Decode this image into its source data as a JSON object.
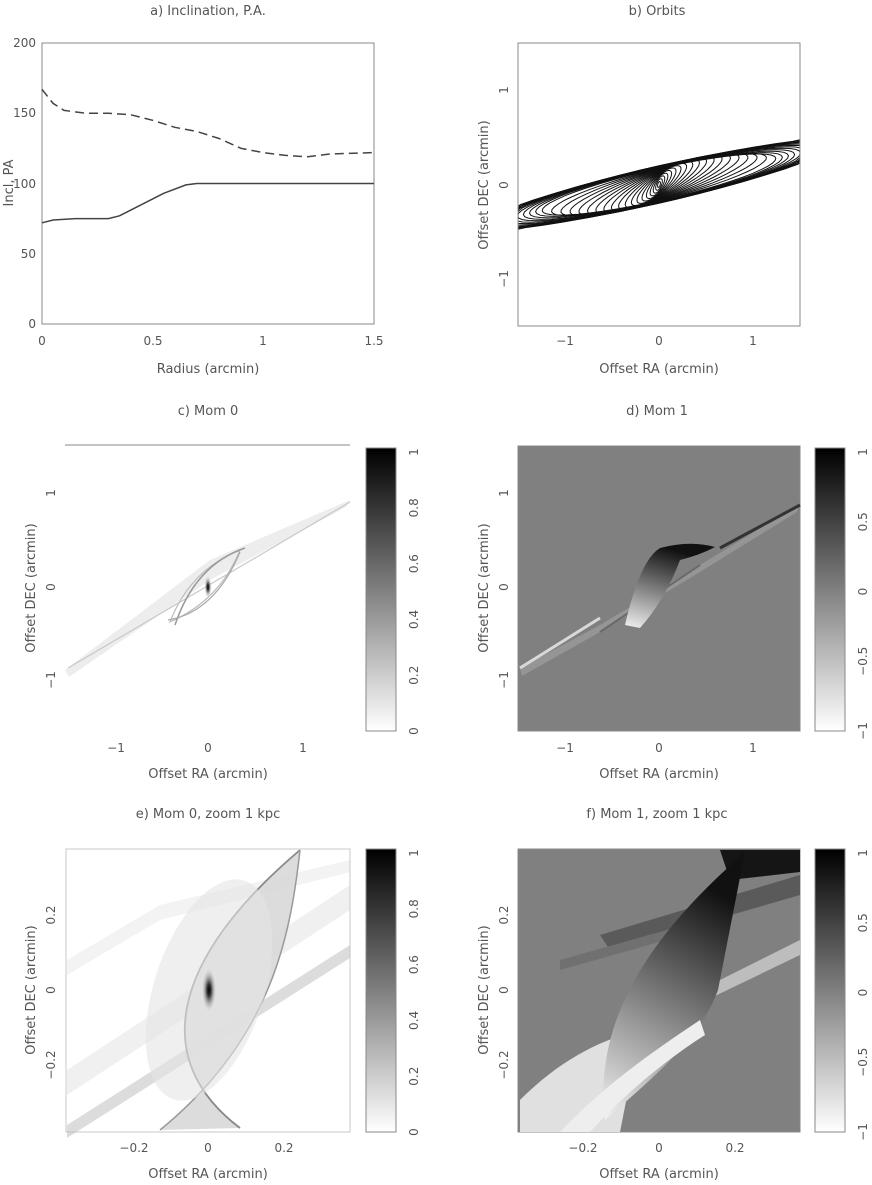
{
  "chart_data": [
    {
      "panel": "a",
      "type": "line",
      "title": "a) Inclination, P.A.",
      "xlabel": "Radius (arcmin)",
      "ylabel": "Incl, PA",
      "xlim": [
        0,
        1.5
      ],
      "ylim": [
        0,
        200
      ],
      "xticks": [
        "0",
        "0.5",
        "1",
        "1.5"
      ],
      "yticks": [
        "0",
        "50",
        "100",
        "150",
        "200"
      ],
      "series": [
        {
          "style": "solid",
          "color": "#444444",
          "x": [
            0,
            0.05,
            0.15,
            0.3,
            0.35,
            0.45,
            0.55,
            0.65,
            0.7,
            0.8,
            1.0,
            1.2,
            1.5
          ],
          "y": [
            72,
            74,
            75,
            75,
            77,
            85,
            93,
            99,
            100,
            100,
            100,
            100,
            100
          ]
        },
        {
          "style": "dashed",
          "color": "#444444",
          "x": [
            0,
            0.05,
            0.1,
            0.2,
            0.3,
            0.4,
            0.5,
            0.6,
            0.7,
            0.8,
            0.9,
            1.0,
            1.1,
            1.2,
            1.3,
            1.5
          ],
          "y": [
            167,
            157,
            152,
            150,
            150,
            149,
            145,
            140,
            137,
            132,
            125,
            122,
            120,
            119,
            121,
            122
          ]
        }
      ]
    },
    {
      "panel": "b",
      "type": "line",
      "title": "b) Orbits",
      "xlabel": "Offset RA (arcmin)",
      "ylabel": "Offset DEC (arcmin)",
      "xlim": [
        -1.5,
        1.5
      ],
      "ylim": [
        -1.5,
        1.5
      ],
      "xticks": [
        "−1",
        "0",
        "1"
      ],
      "yticks": [
        "−1",
        "0",
        "1"
      ],
      "orbits": {
        "count": 30,
        "r_min": 0.05,
        "r_max": 1.5,
        "color": "#111111"
      }
    },
    {
      "panel": "c",
      "type": "heatmap",
      "title": "c) Mom 0",
      "xlabel": "Offset RA (arcmin)",
      "ylabel": "Offset DEC (arcmin)",
      "xlim": [
        -1.5,
        1.5
      ],
      "ylim": [
        -1.5,
        1.5
      ],
      "xticks": [
        "−1",
        "0",
        "1"
      ],
      "yticks": [
        "−1",
        "0",
        "1"
      ],
      "colorbar": {
        "range": [
          0,
          1
        ],
        "labels": [
          "0",
          "0.2",
          "0.4",
          "0.6",
          "0.8",
          "1"
        ]
      }
    },
    {
      "panel": "d",
      "type": "heatmap",
      "title": "d) Mom 1",
      "xlabel": "Offset RA (arcmin)",
      "ylabel": "Offset DEC (arcmin)",
      "xlim": [
        -1.5,
        1.5
      ],
      "ylim": [
        -1.5,
        1.5
      ],
      "xticks": [
        "−1",
        "0",
        "1"
      ],
      "yticks": [
        "−1",
        "0",
        "1"
      ],
      "colorbar": {
        "range": [
          -1,
          1
        ],
        "labels": [
          "−1",
          "−0.5",
          "0",
          "0.5",
          "1"
        ]
      }
    },
    {
      "panel": "e",
      "type": "heatmap",
      "title": "e) Mom 0, zoom 1 kpc",
      "xlabel": "Offset RA (arcmin)",
      "ylabel": "Offset DEC (arcmin)",
      "xlim": [
        -0.38,
        0.38
      ],
      "ylim": [
        -0.38,
        0.38
      ],
      "xticks": [
        "−0.2",
        "0",
        "0.2"
      ],
      "yticks": [
        "−0.2",
        "0",
        "0.2"
      ],
      "colorbar": {
        "range": [
          0,
          1
        ],
        "labels": [
          "0",
          "0.2",
          "0.4",
          "0.6",
          "0.8",
          "1"
        ]
      }
    },
    {
      "panel": "f",
      "type": "heatmap",
      "title": "f) Mom 1, zoom 1 kpc",
      "xlabel": "Offset RA (arcmin)",
      "ylabel": "Offset DEC (arcmin)",
      "xlim": [
        -0.38,
        0.38
      ],
      "ylim": [
        -0.38,
        0.38
      ],
      "xticks": [
        "−0.2",
        "0",
        "0.2"
      ],
      "yticks": [
        "−0.2",
        "0",
        "0.2"
      ],
      "colorbar": {
        "range": [
          -1,
          1
        ],
        "labels": [
          "−1",
          "−0.5",
          "0",
          "0.5",
          "1"
        ]
      }
    }
  ]
}
